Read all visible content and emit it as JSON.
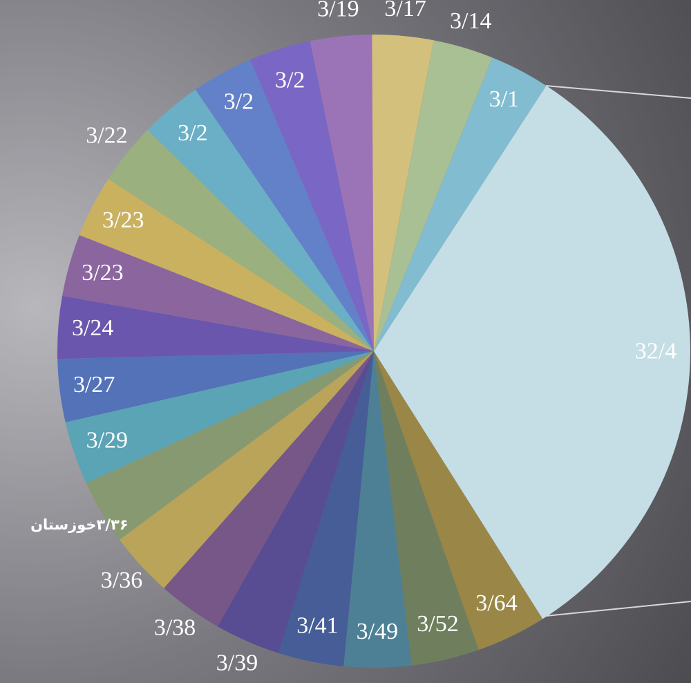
{
  "chart_data": {
    "type": "pie",
    "values": [
      32.4,
      3.64,
      3.52,
      3.49,
      3.41,
      3.39,
      3.38,
      3.36,
      3.36,
      3.29,
      3.27,
      3.24,
      3.23,
      3.23,
      3.22,
      3.2,
      3.2,
      3.2,
      3.19,
      3.17,
      3.14,
      3.1
    ],
    "value_labels": [
      "32/4",
      "3/64",
      "3/52",
      "3/49",
      "3/41",
      "3/39",
      "3/38",
      "3/36",
      "۳/۳۶خوزستان",
      "3/29",
      "3/27",
      "3/24",
      "3/23",
      "3/23",
      "3/22",
      "3/2",
      "3/2",
      "3/2",
      "3/19",
      "3/17",
      "3/14",
      "3/1"
    ],
    "colors": [
      "#c5dde4",
      "#9a8747",
      "#6f7f5e",
      "#4d8095",
      "#465d97",
      "#584c92",
      "#775787",
      "#b9a45a",
      "#879970",
      "#5ba4b6",
      "#5372b7",
      "#6a56ad",
      "#8b659e",
      "#cab160",
      "#9bb07f",
      "#6aafc5",
      "#6381c9",
      "#7a66c4",
      "#9b74b7",
      "#d4c07d",
      "#a9bf94",
      "#82bcd0"
    ]
  }
}
